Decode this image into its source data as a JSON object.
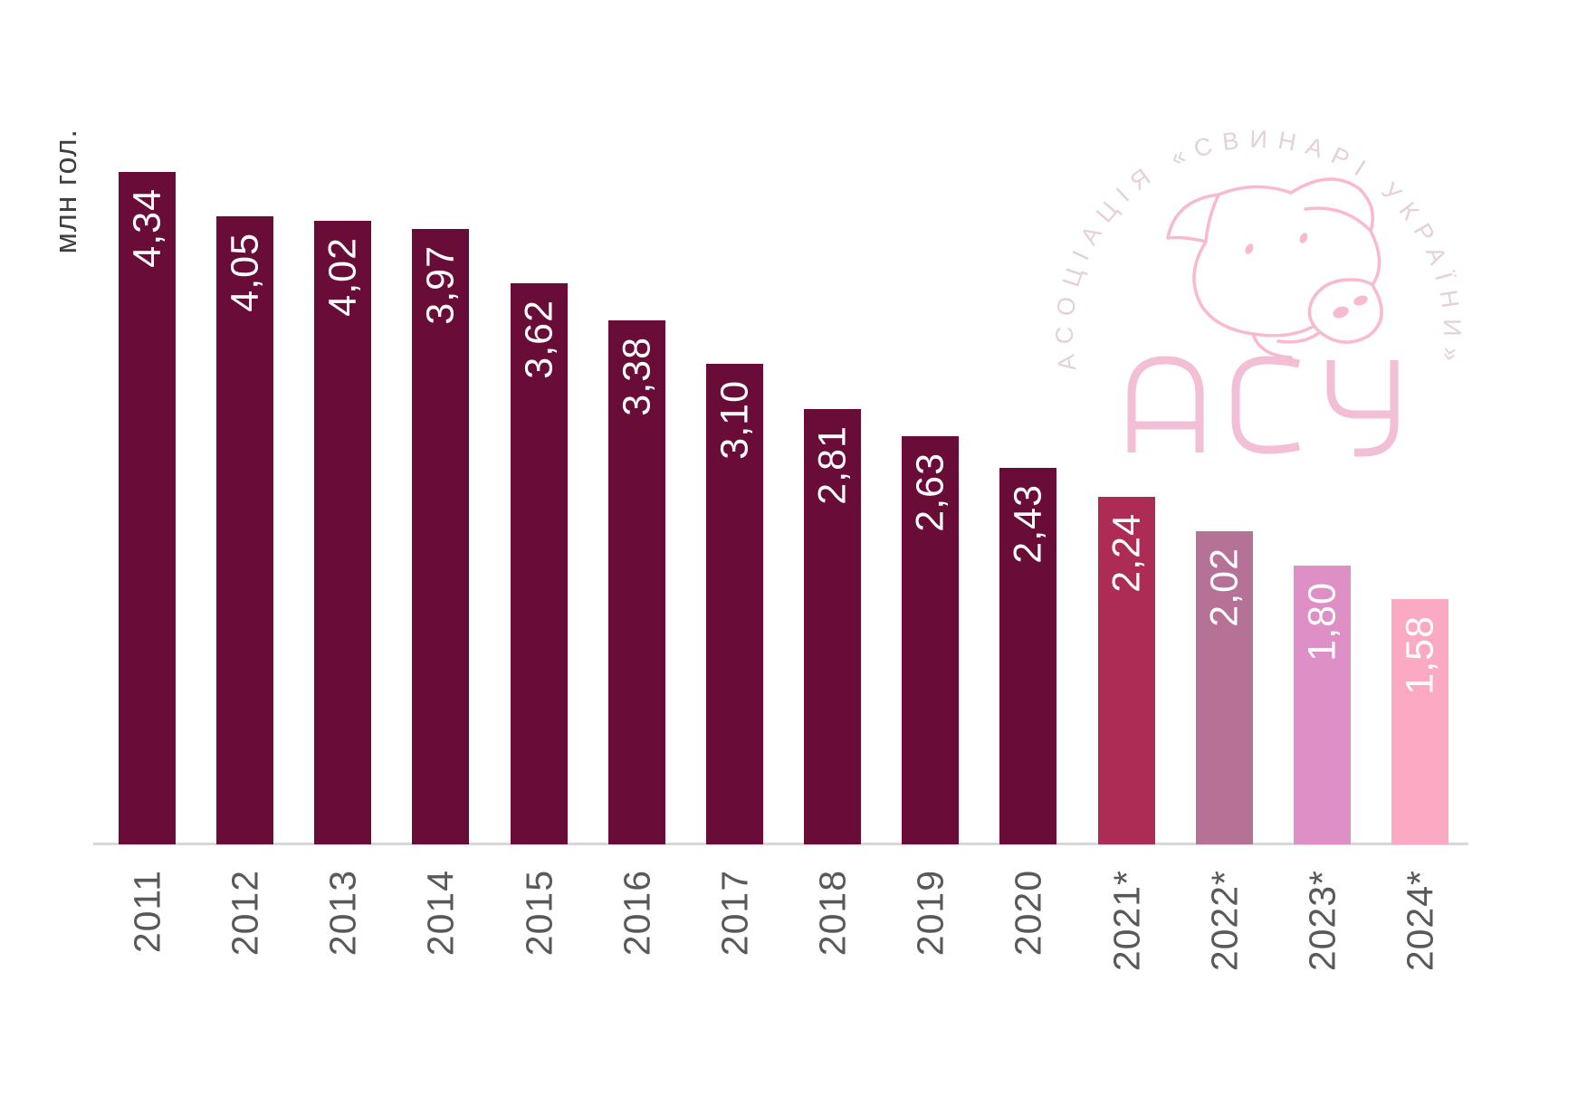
{
  "chart": {
    "y_axis_label": "млн гол.",
    "axis_color": "#d8d8d8",
    "tick_label_color": "#595959",
    "value_label_color": "#ffffff"
  },
  "chart_data": {
    "type": "bar",
    "title": "",
    "xlabel": "",
    "ylabel": "млн гол.",
    "categories": [
      "2011",
      "2012",
      "2013",
      "2014",
      "2015",
      "2016",
      "2017",
      "2018",
      "2019",
      "2020",
      "2021*",
      "2022*",
      "2023*",
      "2024*"
    ],
    "values": [
      4.34,
      4.05,
      4.02,
      3.97,
      3.62,
      3.38,
      3.1,
      2.81,
      2.63,
      2.43,
      2.24,
      2.02,
      1.8,
      1.58
    ],
    "value_labels": [
      "4,34",
      "4,05",
      "4,02",
      "3,97",
      "3,62",
      "3,38",
      "3,10",
      "2,81",
      "2,63",
      "2,43",
      "2,24",
      "2,02",
      "1,80",
      "1,58"
    ],
    "bar_colors": [
      "#690c37",
      "#690c37",
      "#690c37",
      "#690c37",
      "#690c37",
      "#690c37",
      "#690c37",
      "#690c37",
      "#690c37",
      "#690c37",
      "#ad2c55",
      "#b57196",
      "#de8fc5",
      "#fca9c3"
    ],
    "ylim": [
      0,
      4.7
    ],
    "grid": false,
    "legend": null,
    "value_labels_position": "inside-top-rotated",
    "tick_labels_rotation": "vertical"
  },
  "watermark": {
    "arc_text": "АСОЦІАЦІЯ  «СВИНАРІ  УКРАЇНИ»",
    "acronym": "АСУ",
    "line_color": "#f8b9d1",
    "arc_text_color": "#e6d0da",
    "acronym_color": "#f2bfd6"
  }
}
